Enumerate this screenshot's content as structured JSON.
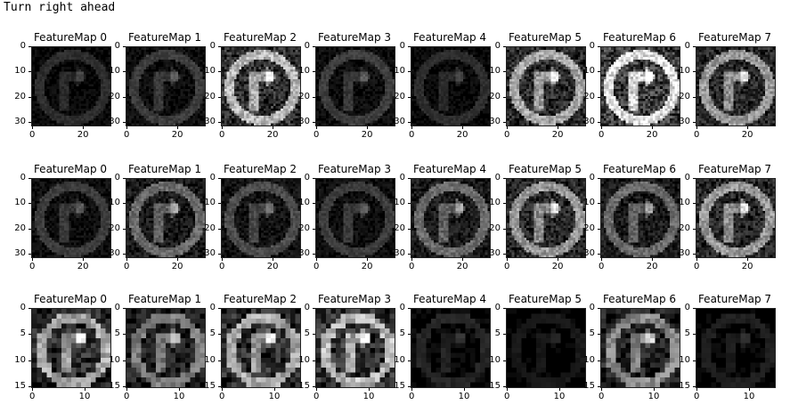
{
  "header": {
    "text": "Turn right ahead"
  },
  "rows": [
    {
      "titles": [
        "FeatureMap 0",
        "FeatureMap 1",
        "FeatureMap 2",
        "FeatureMap 3",
        "FeatureMap 4",
        "FeatureMap 5",
        "FeatureMap 6",
        "FeatureMap 7"
      ],
      "yticks": [
        "0",
        "10",
        "20",
        "30"
      ],
      "xticks": [
        "0",
        "20"
      ],
      "brightness": [
        0.15,
        0.2,
        0.6,
        0.2,
        0.15,
        0.55,
        0.75,
        0.5
      ]
    },
    {
      "titles": [
        "FeatureMap 0",
        "FeatureMap 1",
        "FeatureMap 2",
        "FeatureMap 3",
        "FeatureMap 4",
        "FeatureMap 5",
        "FeatureMap 6",
        "FeatureMap 7"
      ],
      "yticks": [
        "0",
        "10",
        "20",
        "30"
      ],
      "xticks": [
        "0",
        "20"
      ],
      "brightness": [
        0.2,
        0.35,
        0.25,
        0.2,
        0.35,
        0.5,
        0.35,
        0.5
      ]
    },
    {
      "titles": [
        "FeatureMap 0",
        "FeatureMap 1",
        "FeatureMap 2",
        "FeatureMap 3",
        "FeatureMap 4",
        "FeatureMap 5",
        "FeatureMap 6",
        "FeatureMap 7"
      ],
      "yticks": [
        "0",
        "5",
        "10",
        "15"
      ],
      "xticks": [
        "0",
        "10"
      ],
      "brightness": [
        0.55,
        0.4,
        0.55,
        0.6,
        0.12,
        0.08,
        0.45,
        0.1
      ]
    }
  ]
}
